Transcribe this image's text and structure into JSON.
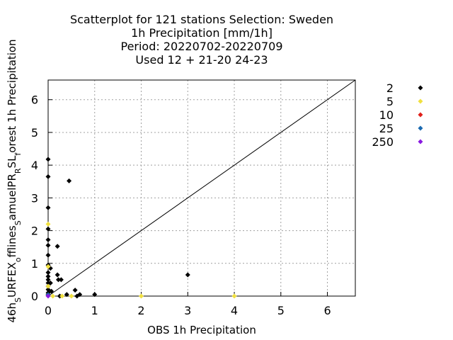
{
  "chart_data": {
    "type": "scatter",
    "title": [
      "Scatterplot for  121 stations Selection: Sweden",
      "1h Precipitation [mm/1h]",
      "Period: 20220702-20220709",
      "Used  12 + 21-20 24-23"
    ],
    "xlabel": "OBS 1h Precipitation",
    "ylabel": "46h",
    "ylabel_parts": [
      {
        "text": "46h",
        "sub": false
      },
      {
        "text": "S",
        "sub": true
      },
      {
        "text": "URFEX",
        "sub": false
      },
      {
        "text": "o",
        "sub": true
      },
      {
        "text": "fflines",
        "sub": false
      },
      {
        "text": "S",
        "sub": true
      },
      {
        "text": "amuelPR",
        "sub": false
      },
      {
        "text": "R",
        "sub": true
      },
      {
        "text": "SL",
        "sub": false
      },
      {
        "text": "f",
        "sub": true
      },
      {
        "text": "orest 1h Precipitation",
        "sub": false
      }
    ],
    "xlim": [
      0,
      6.6
    ],
    "ylim": [
      0,
      6.6
    ],
    "xticks": [
      "0",
      "1",
      "2",
      "3",
      "4",
      "5",
      "6"
    ],
    "yticks": [
      "0",
      "1",
      "2",
      "3",
      "4",
      "5",
      "6"
    ],
    "grid": true,
    "legend_position": "right",
    "diagonal": true,
    "series": [
      {
        "name": "2",
        "color": "#000000",
        "points": [
          [
            0,
            4.18
          ],
          [
            0,
            3.65
          ],
          [
            0,
            2.7
          ],
          [
            0,
            2.05
          ],
          [
            0,
            1.72
          ],
          [
            0,
            1.55
          ],
          [
            0,
            1.25
          ],
          [
            0,
            0.95
          ],
          [
            0,
            0.72
          ],
          [
            0,
            0.6
          ],
          [
            0,
            0.5
          ],
          [
            0,
            0.4
          ],
          [
            0,
            0.3
          ],
          [
            0,
            0.2
          ],
          [
            0,
            0.1
          ],
          [
            0,
            0.05
          ],
          [
            0.05,
            0.85
          ],
          [
            0.05,
            0.4
          ],
          [
            0.07,
            0.15
          ],
          [
            0.2,
            1.52
          ],
          [
            0.2,
            0.65
          ],
          [
            0.22,
            0.5
          ],
          [
            0.28,
            0.5
          ],
          [
            0.25,
            0.0
          ],
          [
            0.45,
            3.52
          ],
          [
            0.4,
            0.05
          ],
          [
            0.58,
            0.18
          ],
          [
            0.62,
            0.0
          ],
          [
            0.68,
            0.05
          ],
          [
            1.0,
            0.05
          ],
          [
            3.0,
            0.65
          ]
        ]
      },
      {
        "name": "5",
        "color": "#f0e040",
        "points": [
          [
            0,
            2.2
          ],
          [
            0,
            0.9
          ],
          [
            0,
            0.3
          ],
          [
            0.1,
            0.0
          ],
          [
            0.3,
            0.0
          ],
          [
            0.5,
            0.0
          ],
          [
            2.0,
            0.0
          ],
          [
            4.0,
            0.0
          ]
        ]
      },
      {
        "name": "10",
        "color": "#e0201a",
        "points": [
          [
            0,
            0.02
          ]
        ]
      },
      {
        "name": "25",
        "color": "#1a6ab0",
        "points": [
          [
            0,
            0.04
          ]
        ]
      },
      {
        "name": "250",
        "color": "#8a1ae0",
        "points": [
          [
            0,
            0.0
          ]
        ]
      }
    ]
  }
}
